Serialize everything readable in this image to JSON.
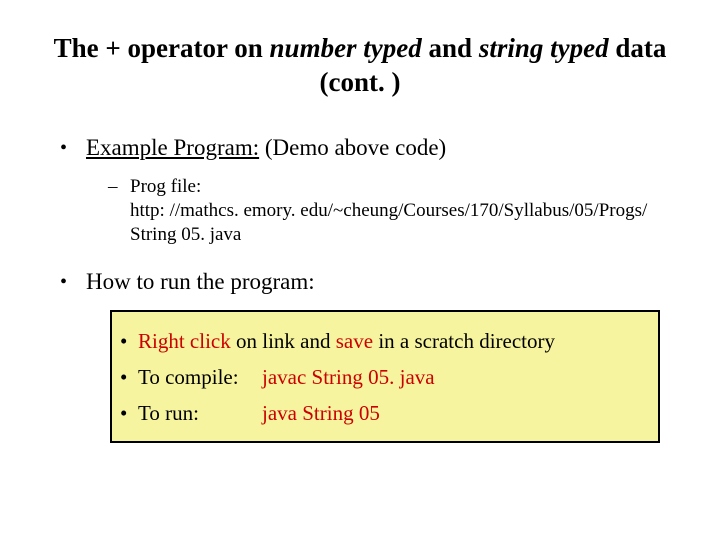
{
  "title": {
    "pre": "The + operator on ",
    "em1": "number typed",
    "mid": " and ",
    "em2": "string typed",
    "post": " data (cont. )"
  },
  "l1a": {
    "underline": "Example Program:",
    "rest": " (Demo above code)"
  },
  "l2a": {
    "label": "Prog file:",
    "url": "http: //mathcs. emory. edu/~cheung/Courses/170/Syllabus/05/Progs/ String 05. java"
  },
  "l1b": "How to run the program:",
  "box": {
    "row1": {
      "red1": "Right click",
      "mid": " on link and ",
      "red2": "save",
      "end": " in a scratch directory"
    },
    "row2": {
      "label": "To compile:",
      "cmd": "javac String 05. java"
    },
    "row3": {
      "label": "To run:",
      "cmd": "java String 05"
    }
  },
  "colors": {
    "box_bg": "#f6f49f",
    "red": "#cc0000",
    "border": "#000000"
  }
}
